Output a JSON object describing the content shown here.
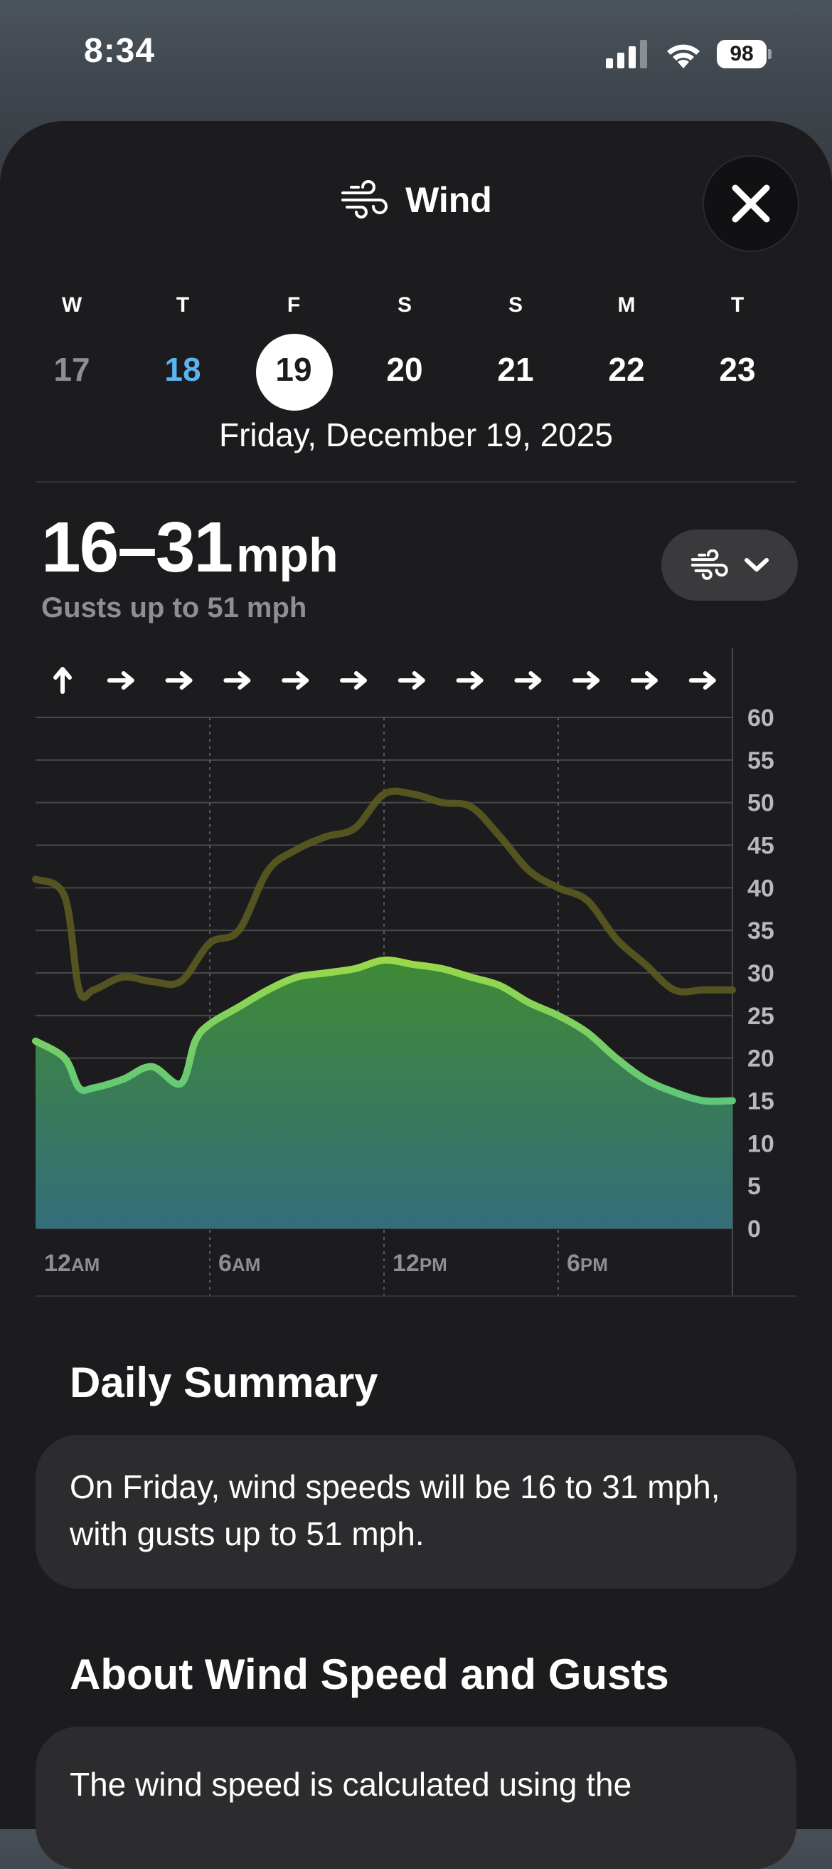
{
  "status": {
    "time": "8:34",
    "battery": "98"
  },
  "header": {
    "title": "Wind"
  },
  "days": [
    {
      "dow": "W",
      "num": "17",
      "state": "past"
    },
    {
      "dow": "T",
      "num": "18",
      "state": "today"
    },
    {
      "dow": "F",
      "num": "19",
      "state": "selected"
    },
    {
      "dow": "S",
      "num": "20",
      "state": "future"
    },
    {
      "dow": "S",
      "num": "21",
      "state": "future"
    },
    {
      "dow": "M",
      "num": "22",
      "state": "future"
    },
    {
      "dow": "T",
      "num": "23",
      "state": "future"
    }
  ],
  "selected_date": "Friday, December 19, 2025",
  "summary": {
    "range": "16–31",
    "unit": "mph",
    "gusts": "Gusts up to 51 mph"
  },
  "chart_data": {
    "type": "area",
    "x_ticks": [
      {
        "num": "12",
        "suffix": "AM"
      },
      {
        "num": "6",
        "suffix": "AM"
      },
      {
        "num": "12",
        "suffix": "PM"
      },
      {
        "num": "6",
        "suffix": "PM"
      }
    ],
    "y_ticks": [
      "60",
      "55",
      "50",
      "45",
      "40",
      "35",
      "30",
      "25",
      "20",
      "15",
      "10",
      "5",
      "0"
    ],
    "ylim": [
      0,
      60
    ],
    "xlim": [
      0,
      24
    ],
    "direction_arrows": [
      "up",
      "right",
      "right",
      "right",
      "right",
      "right",
      "right",
      "right",
      "right",
      "right",
      "right",
      "right"
    ],
    "series": [
      {
        "x": [
          0,
          1,
          1.5,
          2,
          3,
          4,
          5,
          5.5,
          6,
          7,
          8,
          9,
          10,
          11,
          12,
          13,
          14,
          15,
          16,
          17,
          18,
          19,
          20,
          21,
          22,
          23,
          24
        ],
        "values": [
          22,
          20,
          16.5,
          16.5,
          17.5,
          19,
          17,
          22,
          24,
          26,
          28,
          29.5,
          30,
          30.5,
          31.5,
          31,
          30.5,
          29.5,
          28.5,
          26.5,
          25,
          23,
          20,
          17.5,
          16,
          15,
          15
        ],
        "color": "#7cc940"
      },
      {
        "x": [
          0,
          1,
          1.5,
          2,
          3,
          4,
          5,
          6,
          7,
          8,
          9,
          10,
          11,
          12,
          13,
          14,
          15,
          16,
          17,
          18,
          19,
          20,
          21,
          22,
          23,
          24
        ],
        "values": [
          41,
          39,
          28,
          28,
          29.5,
          29,
          29,
          33.5,
          35,
          42,
          44.5,
          46,
          47,
          51,
          51,
          50,
          49.5,
          46,
          42,
          40,
          38.5,
          34,
          31,
          28,
          28,
          28
        ],
        "color": "#5c5a1f"
      }
    ]
  },
  "daily_summary": {
    "heading": "Daily Summary",
    "text": "On Friday, wind speeds will be 16 to 31 mph, with gusts up to 51 mph."
  },
  "about": {
    "heading": "About Wind Speed and Gusts",
    "text": "The wind speed is calculated using the"
  }
}
